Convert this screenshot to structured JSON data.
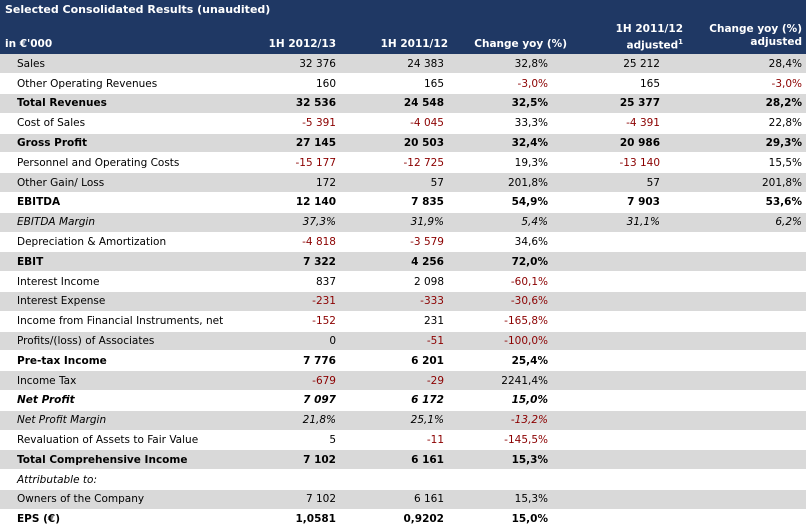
{
  "title": "Selected Consolidated Results (unaudited)",
  "header": {
    "unit": "in €'000",
    "col1": "1H 2012/13",
    "col2": "1H 2011/12",
    "col3": "Change yoy (%)",
    "col4_line1": "1H 2011/12",
    "col4_line2": "adjusted",
    "col4_sup": "1",
    "col5_line1": "Change yoy (%)",
    "col5_line2": "adjusted"
  },
  "rows": [
    {
      "label": "Sales",
      "style": "normal",
      "v1": "32 376",
      "v2": "24 383",
      "v3": "32,8%",
      "v4": "25 212",
      "v5": "28,4%"
    },
    {
      "label": "Other Operating Revenues",
      "style": "normal",
      "v1": "160",
      "v2": "165",
      "v3": "-3,0%",
      "v4": "165",
      "v5": "-3,0%"
    },
    {
      "label": "Total Revenues",
      "style": "bold",
      "v1": "32 536",
      "v2": "24 548",
      "v3": "32,5%",
      "v4": "25 377",
      "v5": "28,2%"
    },
    {
      "label": "Cost of Sales",
      "style": "normal",
      "v1": "-5 391",
      "v2": "-4 045",
      "v3": "33,3%",
      "v4": "-4 391",
      "v5": "22,8%"
    },
    {
      "label": "Gross Profit",
      "style": "bold",
      "v1": "27 145",
      "v2": "20 503",
      "v3": "32,4%",
      "v4": "20 986",
      "v5": "29,3%"
    },
    {
      "label": "Personnel and Operating Costs",
      "style": "normal",
      "v1": "-15 177",
      "v2": "-12 725",
      "v3": "19,3%",
      "v4": "-13 140",
      "v5": "15,5%"
    },
    {
      "label": "Other Gain/ Loss",
      "style": "normal",
      "v1": "172",
      "v2": "57",
      "v3": "201,8%",
      "v4": "57",
      "v5": "201,8%"
    },
    {
      "label": "EBITDA",
      "style": "bold",
      "v1": "12 140",
      "v2": "7 835",
      "v3": "54,9%",
      "v4": "7 903",
      "v5": "53,6%"
    },
    {
      "label": "EBITDA Margin",
      "style": "italic",
      "v1": "37,3%",
      "v2": "31,9%",
      "v3": "5,4%",
      "v4": "31,1%",
      "v5": "6,2%"
    },
    {
      "label": "Depreciation & Amortization",
      "style": "normal",
      "v1": "-4 818",
      "v2": "-3 579",
      "v3": "34,6%",
      "v4": "",
      "v5": ""
    },
    {
      "label": "EBIT",
      "style": "bold",
      "v1": "7 322",
      "v2": "4 256",
      "v3": "72,0%",
      "v4": "",
      "v5": ""
    },
    {
      "label": "Interest Income",
      "style": "normal",
      "v1": "837",
      "v2": "2 098",
      "v3": "-60,1%",
      "v4": "",
      "v5": ""
    },
    {
      "label": "Interest Expense",
      "style": "normal",
      "v1": "-231",
      "v2": "-333",
      "v3": "-30,6%",
      "v4": "",
      "v5": ""
    },
    {
      "label": "Income from Financial Instruments, net",
      "style": "normal",
      "v1": "-152",
      "v2": "231",
      "v3": "-165,8%",
      "v4": "",
      "v5": ""
    },
    {
      "label": "Profits/(loss) of Associates",
      "style": "normal",
      "v1": "0",
      "v2": "-51",
      "v3": "-100,0%",
      "v4": "",
      "v5": ""
    },
    {
      "label": "Pre-tax Income",
      "style": "bold",
      "v1": "7 776",
      "v2": "6 201",
      "v3": "25,4%",
      "v4": "",
      "v5": ""
    },
    {
      "label": "Income Tax",
      "style": "normal",
      "v1": "-679",
      "v2": "-29",
      "v3": "2241,4%",
      "v4": "",
      "v5": ""
    },
    {
      "label": "Net Profit",
      "style": "bolditalic",
      "v1": "7 097",
      "v2": "6 172",
      "v3": "15,0%",
      "v4": "",
      "v5": ""
    },
    {
      "label": "Net Profit Margin",
      "style": "italic",
      "v1": "21,8%",
      "v2": "25,1%",
      "v3": "-13,2%",
      "v4": "",
      "v5": ""
    },
    {
      "label": "Revaluation of Assets to Fair Value",
      "style": "normal",
      "v1": "5",
      "v2": "-11",
      "v3": "-145,5%",
      "v4": "",
      "v5": ""
    },
    {
      "label": "Total Comprehensive Income",
      "style": "bold",
      "v1": "7 102",
      "v2": "6 161",
      "v3": "15,3%",
      "v4": "",
      "v5": ""
    },
    {
      "label": "Attributable to:",
      "style": "italic",
      "v1": "",
      "v2": "",
      "v3": "",
      "v4": "",
      "v5": ""
    },
    {
      "label": "Owners of the Company",
      "style": "normal",
      "v1": "7 102",
      "v2": "6 161",
      "v3": "15,3%",
      "v4": "",
      "v5": ""
    },
    {
      "label": "EPS (€)",
      "style": "bold",
      "v1": "1,0581",
      "v2": "0,9202",
      "v3": "15,0%",
      "v4": "",
      "v5": ""
    }
  ],
  "colors": {
    "header_bg": "#1f3864",
    "row_grey": "#d9d9d9",
    "negative": "#8b0000"
  }
}
